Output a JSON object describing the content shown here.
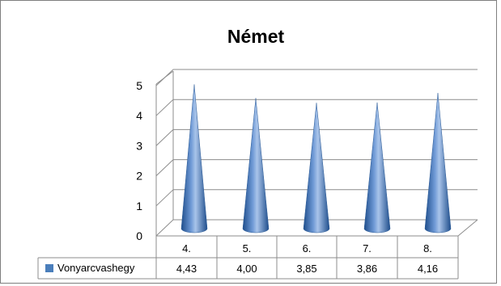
{
  "chart_data": {
    "type": "bar",
    "subtype": "3d-cone",
    "title": "Német",
    "categories": [
      "4.",
      "5.",
      "6.",
      "7.",
      "8."
    ],
    "series": [
      {
        "name": "Vonyarcvashegy",
        "values": [
          4.43,
          4.0,
          3.85,
          3.86,
          4.16
        ],
        "labels": [
          "4,43",
          "4,00",
          "3,85",
          "3,86",
          "4,16"
        ]
      }
    ],
    "y_ticks": [
      "0",
      "1",
      "2",
      "3",
      "4",
      "5"
    ],
    "ylim": [
      0,
      5
    ],
    "grid": true,
    "legend": "data-table-left",
    "colors": {
      "cone": "#4a7ebb",
      "cone_dark": "#1f4e8c",
      "cone_light": "#a9c4ea",
      "grid": "#8c8c8c",
      "border": "#7f7f7f",
      "text": "#000000"
    }
  }
}
